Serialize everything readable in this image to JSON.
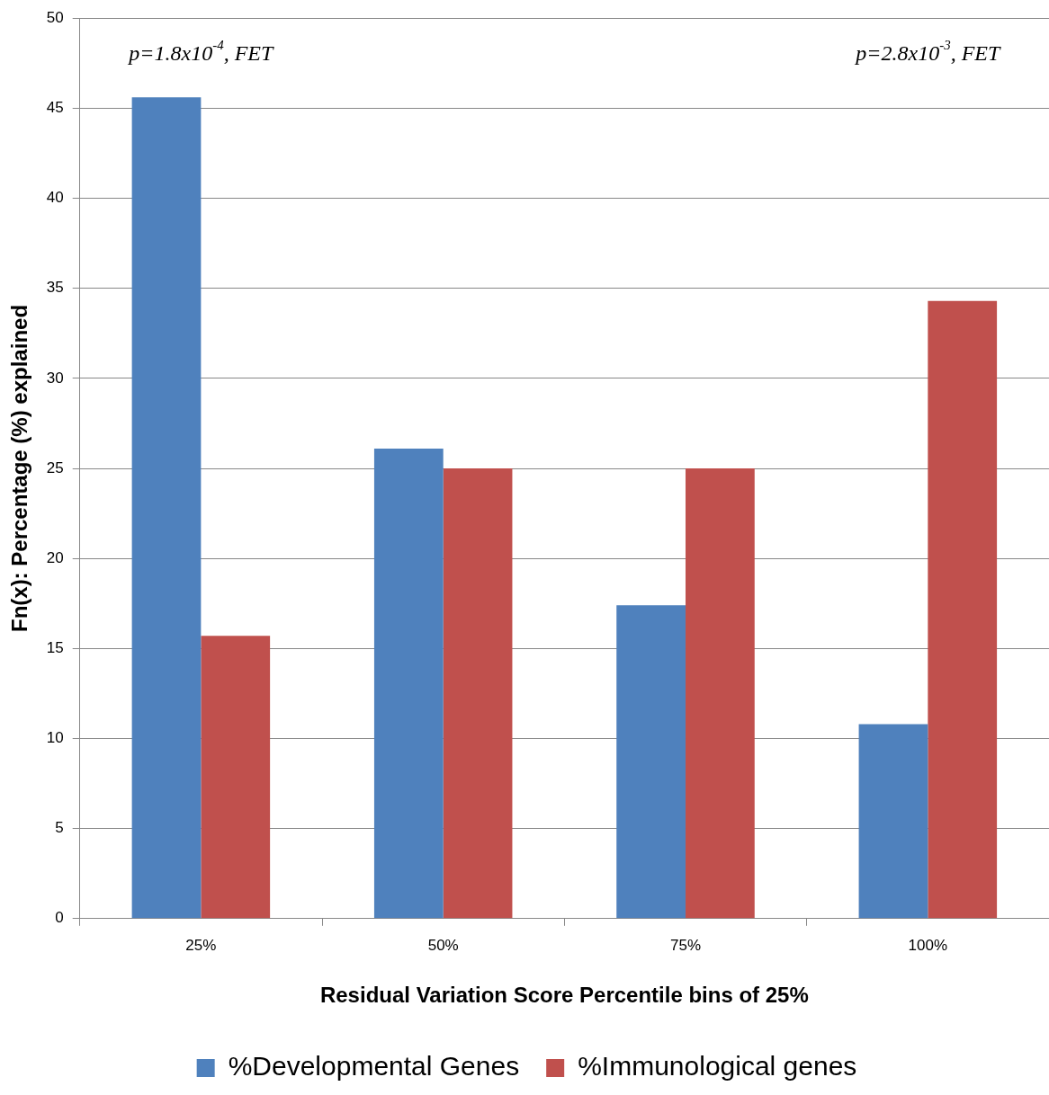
{
  "chart_data": {
    "type": "bar",
    "xlabel": "Residual Variation Score Percentile bins of 25%",
    "ylabel": "Fn(x): Percentage (%) explained",
    "categories": [
      "25%",
      "50%",
      "75%",
      "100%"
    ],
    "series": [
      {
        "name": "%Developmental Genes",
        "color": "#4f81bd",
        "values": [
          45.6,
          26.1,
          17.4,
          10.8
        ]
      },
      {
        "name": "%Immunological genes",
        "color": "#c0504d",
        "values": [
          15.7,
          25,
          25,
          34.3
        ]
      }
    ],
    "ylim": [
      0,
      50
    ],
    "yticks": [
      0,
      5,
      10,
      15,
      20,
      25,
      30,
      35,
      40,
      45,
      50
    ],
    "grid": "y",
    "legend": "bottom",
    "annotations": [
      "p=1.8x10$^{-4}$, FET",
      "p=2.8x10$^{-3}$, FET"
    ]
  }
}
